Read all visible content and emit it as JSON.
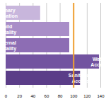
{
  "chart_data": {
    "type": "bar",
    "orientation": "horizontal",
    "categories": [
      "Primary education",
      "Child Mortality",
      "Maternal Mortality",
      "Water Access",
      "Sanitation Access"
    ],
    "values": [
      51,
      94,
      94,
      138,
      110
    ],
    "colors": [
      "#c8b6dc",
      "#a98ec8",
      "#8d6db4",
      "#7253a0",
      "#5b3d88"
    ],
    "reference_line": 100,
    "xlim": [
      0,
      140
    ],
    "xticks": [
      0,
      20,
      40,
      60,
      80,
      100,
      120,
      140
    ],
    "grid": true,
    "tick_labels": "x",
    "data_labels": false
  }
}
